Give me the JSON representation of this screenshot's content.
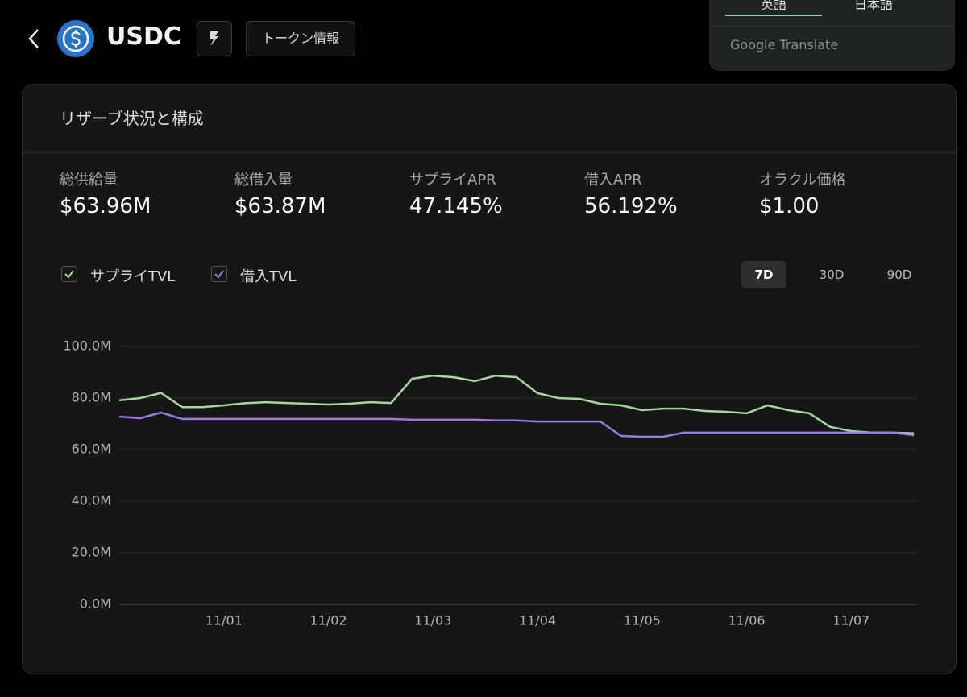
{
  "header": {
    "title": "USDC",
    "info_button": "トークン情報"
  },
  "translate_popup": {
    "tabs": [
      "英語",
      "日本語"
    ],
    "brand": "Google Translate"
  },
  "panel": {
    "title": "リザーブ状況と構成",
    "stats": [
      {
        "label": "総供給量",
        "value": "$63.96M"
      },
      {
        "label": "総借入量",
        "value": "$63.87M"
      },
      {
        "label": "サプライAPR",
        "value": "47.145%"
      },
      {
        "label": "借入APR",
        "value": "56.192%"
      },
      {
        "label": "オラクル価格",
        "value": "$1.00"
      }
    ],
    "range_options": [
      "7D",
      "30D",
      "90D"
    ]
  },
  "chart_data": {
    "type": "line",
    "x": [
      0,
      0.2,
      0.4,
      0.6,
      0.8,
      1.0,
      1.2,
      1.4,
      1.6,
      1.8,
      2.0,
      2.2,
      2.4,
      2.6,
      2.8,
      3.0,
      3.2,
      3.4,
      3.6,
      3.8,
      4.0,
      4.2,
      4.4,
      4.6,
      4.8,
      5.0,
      5.2,
      5.4,
      5.6,
      5.8,
      6.0,
      6.2,
      6.4,
      6.6,
      6.8,
      7.0,
      7.2,
      7.4,
      7.6
    ],
    "series": [
      {
        "name": "サプライTVL",
        "color": "#a6d89e",
        "values": [
          79.1,
          80,
          82,
          76.5,
          76.5,
          77.2,
          78,
          78.4,
          78.1,
          77.8,
          77.5,
          77.8,
          78.4,
          78.1,
          87.5,
          88.7,
          88.1,
          86.6,
          88.7,
          88.1,
          81.9,
          80,
          79.7,
          77.8,
          77.2,
          75.3,
          75.9,
          75.9,
          75,
          74.7,
          74.1,
          77.2,
          75.3,
          74.1,
          68.8,
          67.2,
          66.6,
          66.6,
          66.3
        ]
      },
      {
        "name": "借入TVL",
        "color": "#9a7be6",
        "values": [
          72.8,
          72.2,
          74.4,
          71.9,
          71.9,
          71.9,
          71.9,
          71.9,
          71.9,
          71.9,
          71.9,
          71.9,
          71.9,
          71.9,
          71.6,
          71.6,
          71.6,
          71.6,
          71.3,
          71.3,
          70.9,
          70.9,
          70.9,
          70.9,
          65.3,
          65,
          65,
          66.6,
          66.6,
          66.6,
          66.6,
          66.6,
          66.6,
          66.6,
          66.6,
          66.6,
          66.6,
          66.6,
          65.6
        ]
      }
    ],
    "xlim": [
      0,
      7.63
    ],
    "xticks": [
      {
        "value": 1,
        "label": "11/01"
      },
      {
        "value": 2,
        "label": "11/02"
      },
      {
        "value": 3,
        "label": "11/03"
      },
      {
        "value": 4,
        "label": "11/04"
      },
      {
        "value": 5,
        "label": "11/05"
      },
      {
        "value": 6,
        "label": "11/06"
      },
      {
        "value": 7,
        "label": "11/07"
      }
    ],
    "ylim": [
      0,
      100
    ],
    "yticks": [
      {
        "value": 0,
        "label": "0.0M"
      },
      {
        "value": 20,
        "label": "20.0M"
      },
      {
        "value": 40,
        "label": "40.0M"
      },
      {
        "value": 60,
        "label": "60.0M"
      },
      {
        "value": 80,
        "label": "80.0M"
      },
      {
        "value": 100,
        "label": "100.0M"
      }
    ],
    "grid": true
  }
}
